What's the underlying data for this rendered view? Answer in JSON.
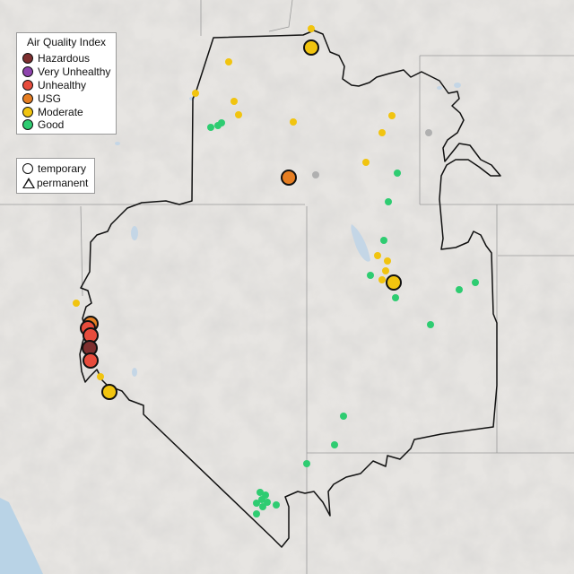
{
  "legend": {
    "title": "Air Quality Index",
    "categories": [
      {
        "key": "hazardous",
        "label": "Hazardous",
        "color": "#7e2f2f"
      },
      {
        "key": "very_unhealthy",
        "label": "Very Unhealthy",
        "color": "#8e44ad"
      },
      {
        "key": "unhealthy",
        "label": "Unhealthy",
        "color": "#e74c3c"
      },
      {
        "key": "usg",
        "label": "USG",
        "color": "#e67e22"
      },
      {
        "key": "moderate",
        "label": "Moderate",
        "color": "#f1c40f"
      },
      {
        "key": "good",
        "label": "Good",
        "color": "#2ecc71"
      }
    ],
    "no_data_color": "#b0b0b0"
  },
  "monitor_type_legend": {
    "temporary_label": "temporary",
    "permanent_label": "permanent"
  }
}
